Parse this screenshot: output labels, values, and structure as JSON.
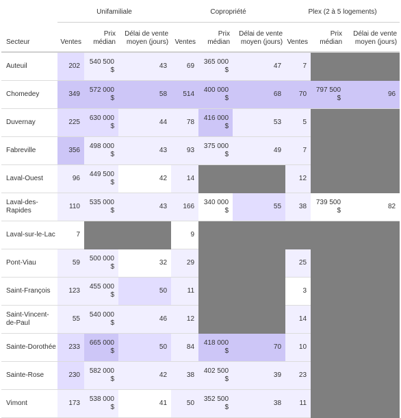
{
  "groups": {
    "unifamiliale": "Unifamiliale",
    "copropriete": "Copropriété",
    "plex": "Plex (2 à 5 logements)"
  },
  "headers": {
    "secteur": "Secteur",
    "ventes": "Ventes",
    "prix": "Prix médian",
    "delai": "Délai de vente moyen (jours)"
  },
  "rows": [
    {
      "secteur": "Auteuil",
      "u": {
        "v": "202",
        "p": "540 500 $",
        "d": "43"
      },
      "c": {
        "v": "69",
        "p": "365 000 $",
        "d": "47"
      },
      "x": {
        "v": "7",
        "p": null,
        "d": null
      }
    },
    {
      "secteur": "Chomedey",
      "u": {
        "v": "349",
        "p": "572 000 $",
        "d": "58"
      },
      "c": {
        "v": "514",
        "p": "400 000 $",
        "d": "68"
      },
      "x": {
        "v": "70",
        "p": "797 500 $",
        "d": "96"
      }
    },
    {
      "secteur": "Duvernay",
      "u": {
        "v": "225",
        "p": "630 000 $",
        "d": "44"
      },
      "c": {
        "v": "78",
        "p": "416 000 $",
        "d": "53"
      },
      "x": {
        "v": "5",
        "p": null,
        "d": null
      }
    },
    {
      "secteur": "Fabreville",
      "u": {
        "v": "356",
        "p": "498 000 $",
        "d": "43"
      },
      "c": {
        "v": "93",
        "p": "375 000 $",
        "d": "49"
      },
      "x": {
        "v": "7",
        "p": null,
        "d": null
      }
    },
    {
      "secteur": "Laval-Ouest",
      "u": {
        "v": "96",
        "p": "449 500 $",
        "d": "42"
      },
      "c": {
        "v": "14",
        "p": null,
        "d": null
      },
      "x": {
        "v": "12",
        "p": null,
        "d": null
      }
    },
    {
      "secteur": "Laval-des-Rapides",
      "u": {
        "v": "110",
        "p": "535 000 $",
        "d": "43"
      },
      "c": {
        "v": "166",
        "p": "340 000 $",
        "d": "55"
      },
      "x": {
        "v": "38",
        "p": "739 500 $",
        "d": "82"
      }
    },
    {
      "secteur": "Laval-sur-le-Lac",
      "u": {
        "v": "7",
        "p": null,
        "d": null
      },
      "c": {
        "v": "9",
        "p": null,
        "d": null
      },
      "x": {
        "v": null,
        "p": null,
        "d": null
      }
    },
    {
      "secteur": "Pont-Viau",
      "u": {
        "v": "59",
        "p": "500 000 $",
        "d": "32"
      },
      "c": {
        "v": "29",
        "p": null,
        "d": null
      },
      "x": {
        "v": "25",
        "p": null,
        "d": null
      }
    },
    {
      "secteur": "Saint-François",
      "u": {
        "v": "123",
        "p": "455 000 $",
        "d": "50"
      },
      "c": {
        "v": "11",
        "p": null,
        "d": null
      },
      "x": {
        "v": "3",
        "p": null,
        "d": null
      }
    },
    {
      "secteur": "Saint-Vincent-de-Paul",
      "u": {
        "v": "55",
        "p": "540 000 $",
        "d": "46"
      },
      "c": {
        "v": "12",
        "p": null,
        "d": null
      },
      "x": {
        "v": "14",
        "p": null,
        "d": null
      }
    },
    {
      "secteur": "Sainte-Dorothée",
      "u": {
        "v": "233",
        "p": "665 000 $",
        "d": "50"
      },
      "c": {
        "v": "84",
        "p": "418 000 $",
        "d": "70"
      },
      "x": {
        "v": "10",
        "p": null,
        "d": null
      }
    },
    {
      "secteur": "Sainte-Rose",
      "u": {
        "v": "230",
        "p": "582 000 $",
        "d": "42"
      },
      "c": {
        "v": "38",
        "p": "402 500 $",
        "d": "39"
      },
      "x": {
        "v": "23",
        "p": null,
        "d": null
      }
    },
    {
      "secteur": "Vimont",
      "u": {
        "v": "173",
        "p": "538 000 $",
        "d": "41"
      },
      "c": {
        "v": "50",
        "p": "352 500 $",
        "d": "38"
      },
      "x": {
        "v": "11",
        "p": null,
        "d": null
      }
    }
  ],
  "colors": {
    "na": "#7f7f7f",
    "tint_light": "#f1efff",
    "tint_medium": "#e2ddff",
    "tint_strong": "#cdc6f7"
  },
  "shading": [
    [
      "medium",
      "light",
      "light",
      "light",
      "light",
      "light",
      "light",
      ""
    ],
    [
      "strong",
      "strong",
      "strong",
      "strong",
      "strong",
      "strong",
      "strong",
      "strong",
      "strong"
    ],
    [
      "medium",
      "medium",
      "light",
      "light",
      "strong",
      "light",
      "light"
    ],
    [
      "strong",
      "light",
      "light",
      "light",
      "light",
      "light",
      "light"
    ],
    [
      "light",
      "light",
      "",
      "light",
      "light"
    ],
    [
      "light",
      "light",
      "light",
      "light",
      "",
      "medium",
      "light",
      "",
      ""
    ],
    [
      "",
      "",
      "",
      ""
    ],
    [
      "light",
      "light",
      "",
      "light",
      "light"
    ],
    [
      "light",
      "light",
      "medium",
      "light",
      ""
    ],
    [
      "light",
      "light",
      "light",
      "light",
      "light"
    ],
    [
      "medium",
      "strong",
      "medium",
      "light",
      "strong",
      "strong",
      "light"
    ],
    [
      "medium",
      "light",
      "light",
      "light",
      "light",
      "light",
      "light"
    ],
    [
      "light",
      "light",
      "",
      "light",
      "light",
      "light",
      "light"
    ]
  ]
}
